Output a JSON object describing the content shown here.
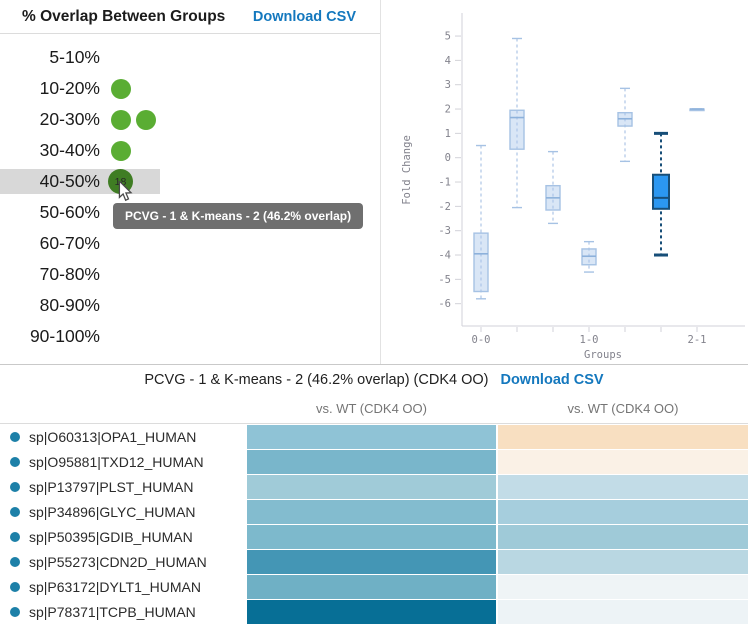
{
  "overlap_panel": {
    "title": "% Overlap Between Groups",
    "download_label": "Download CSV",
    "ranges": [
      {
        "label": "5-10%",
        "dot_count": 0,
        "highlighted": false
      },
      {
        "label": "10-20%",
        "dot_count": 1,
        "highlighted": false
      },
      {
        "label": "20-30%",
        "dot_count": 2,
        "highlighted": false
      },
      {
        "label": "30-40%",
        "dot_count": 1,
        "highlighted": false
      },
      {
        "label": "40-50%",
        "dot_count": 1,
        "highlighted": true,
        "hover_dot_label": "18"
      },
      {
        "label": "50-60%",
        "dot_count": 0,
        "highlighted": false
      },
      {
        "label": "60-70%",
        "dot_count": 0,
        "highlighted": false
      },
      {
        "label": "70-80%",
        "dot_count": 0,
        "highlighted": false
      },
      {
        "label": "80-90%",
        "dot_count": 0,
        "highlighted": false
      },
      {
        "label": "90-100%",
        "dot_count": 0,
        "highlighted": false
      }
    ],
    "tooltip_text": "PCVG - 1 & K-means - 2 (46.2% overlap)"
  },
  "chart_data": {
    "type": "box",
    "xlabel": "Groups",
    "ylabel": "Fold Change",
    "ylim": [
      -6.9,
      5.6
    ],
    "yticks": [
      5,
      4,
      3,
      2,
      1,
      0,
      -1,
      -2,
      -3,
      -4,
      -5,
      -6
    ],
    "xtick_labels": [
      "0-0",
      "",
      "",
      "1-0",
      "",
      "",
      "2-1"
    ],
    "series": [
      {
        "whisker_high": 0.5,
        "q3": -3.1,
        "median": -3.95,
        "q1": -5.5,
        "whisker_low": -5.8,
        "highlight": false
      },
      {
        "whisker_high": 4.9,
        "q3": 1.95,
        "median": 1.65,
        "q1": 0.35,
        "whisker_low": -2.05,
        "highlight": false
      },
      {
        "whisker_high": 0.25,
        "q3": -1.15,
        "median": -1.65,
        "q1": -2.15,
        "whisker_low": -2.7,
        "highlight": false
      },
      {
        "whisker_high": -3.45,
        "q3": -3.75,
        "median": -4.05,
        "q1": -4.4,
        "whisker_low": -4.7,
        "highlight": false
      },
      {
        "whisker_high": 2.85,
        "q3": 1.85,
        "median": 1.6,
        "q1": 1.3,
        "whisker_low": -0.15,
        "highlight": false
      },
      {
        "whisker_high": 1.0,
        "q3": -0.7,
        "median": -1.65,
        "q1": -2.1,
        "whisker_low": -4.0,
        "highlight": true
      },
      {
        "whisker_high": 2.0,
        "q3": 2.0,
        "median": 2.0,
        "q1": 2.0,
        "whisker_low": 2.0,
        "highlight": false
      }
    ]
  },
  "heatmap": {
    "title": "PCVG - 1 & K-means - 2 (46.2% overlap) (CDK4 OO)",
    "download_label": "Download CSV",
    "columns": [
      "vs. WT (CDK4 OO)",
      "vs. WT (CDK4 OO)"
    ],
    "rows": [
      {
        "name": "sp|O60313|OPA1_HUMAN",
        "cell_colors": [
          "#8fc3d6",
          "#f8dfc1"
        ]
      },
      {
        "name": "sp|O95881|TXD12_HUMAN",
        "cell_colors": [
          "#79b6cb",
          "#faf1e6"
        ]
      },
      {
        "name": "sp|P13797|PLST_HUMAN",
        "cell_colors": [
          "#a0cbd8",
          "#c2dce7"
        ]
      },
      {
        "name": "sp|P34896|GLYC_HUMAN",
        "cell_colors": [
          "#83bccf",
          "#a6cedd"
        ]
      },
      {
        "name": "sp|P50395|GDIB_HUMAN",
        "cell_colors": [
          "#7db9cc",
          "#9fcad8"
        ]
      },
      {
        "name": "sp|P55273|CDN2D_HUMAN",
        "cell_colors": [
          "#4496b5",
          "#b9d7e2"
        ]
      },
      {
        "name": "sp|P63172|DYLT1_HUMAN",
        "cell_colors": [
          "#6fb0c5",
          "#eff4f6"
        ]
      },
      {
        "name": "sp|P78371|TCPB_HUMAN",
        "cell_colors": [
          "#076f96",
          "#edf3f6"
        ]
      }
    ]
  },
  "colors": {
    "link": "#1478be",
    "green_dot": "#5aad33",
    "green_dot_hover": "#3f7d23",
    "row_highlight": "#d8d8d8",
    "tooltip_bg": "#6f6f6f",
    "protein_bullet": "#1d80a8",
    "box_normal_stroke": "#a6c2e4",
    "box_normal_fill": "#cfe0f3",
    "box_highlight_stroke": "#174e78",
    "box_highlight_fill": "#2b97f1",
    "axis": "#d2d2d8"
  }
}
